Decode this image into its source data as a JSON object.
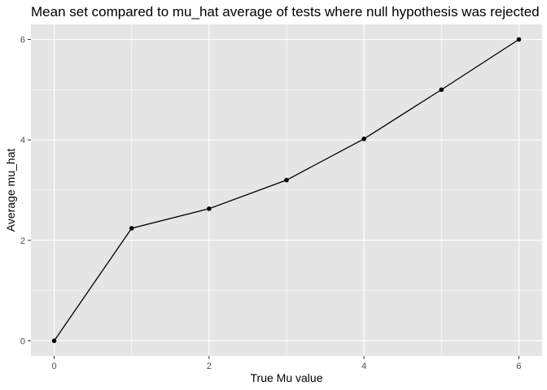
{
  "chart_data": {
    "type": "line",
    "title": "Mean set compared to mu_hat average of tests where null hypothesis was rejected",
    "xlabel": "True Mu value",
    "ylabel": "Average mu_hat",
    "x": [
      0,
      1,
      2,
      3,
      4,
      5,
      6
    ],
    "series": [
      {
        "values": [
          0.0,
          2.24,
          2.63,
          3.2,
          4.02,
          5.0,
          6.0
        ]
      }
    ],
    "xlim": [
      -0.3,
      6.3
    ],
    "ylim": [
      -0.3,
      6.3
    ],
    "x_ticks": [
      0,
      2,
      4,
      6
    ],
    "y_ticks": [
      0,
      2,
      4,
      6
    ],
    "x_tick_labels": [
      "0",
      "2",
      "4",
      "6"
    ],
    "y_tick_labels": [
      "0",
      "2",
      "4",
      "6"
    ],
    "grid": true,
    "legend": "none",
    "colors": {
      "panel_background": "#e5e5e5",
      "grid_line": "#ffffff",
      "line": "#000000",
      "point": "#000000",
      "tick_label": "#4d4d4d"
    }
  }
}
